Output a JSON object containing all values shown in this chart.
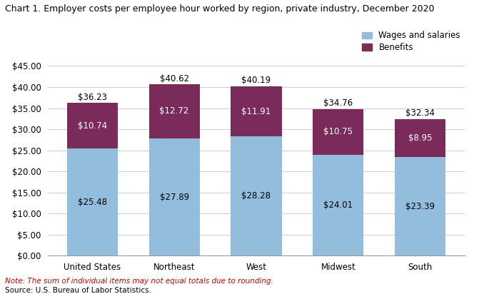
{
  "title": "Chart 1. Employer costs per employee hour worked by region, private industry, December 2020",
  "categories": [
    "United States",
    "Northeast",
    "West",
    "Midwest",
    "South"
  ],
  "wages": [
    25.48,
    27.89,
    28.28,
    24.01,
    23.39
  ],
  "benefits": [
    10.74,
    12.72,
    11.91,
    10.75,
    8.95
  ],
  "totals": [
    36.23,
    40.62,
    40.19,
    34.76,
    32.34
  ],
  "wages_color": "#92BDDC",
  "benefits_color": "#7B2B5A",
  "wages_label": "Wages and salaries",
  "benefits_label": "Benefits",
  "ylim": [
    0,
    46
  ],
  "yticks": [
    0,
    5,
    10,
    15,
    20,
    25,
    30,
    35,
    40,
    45
  ],
  "note": "Note: The sum of individual items may not equal totals due to rounding.",
  "source": "Source: U.S. Bureau of Labor Statistics.",
  "title_fontsize": 9,
  "label_fontsize": 8.5,
  "tick_fontsize": 8.5,
  "note_fontsize": 7.5,
  "background_color": "#FFFFFF",
  "grid_color": "#D0D0D0",
  "wages_label_colors": [
    "black",
    "black",
    "black",
    "black",
    "black"
  ],
  "benefits_label_colors": [
    "white",
    "white",
    "white",
    "white",
    "white"
  ]
}
